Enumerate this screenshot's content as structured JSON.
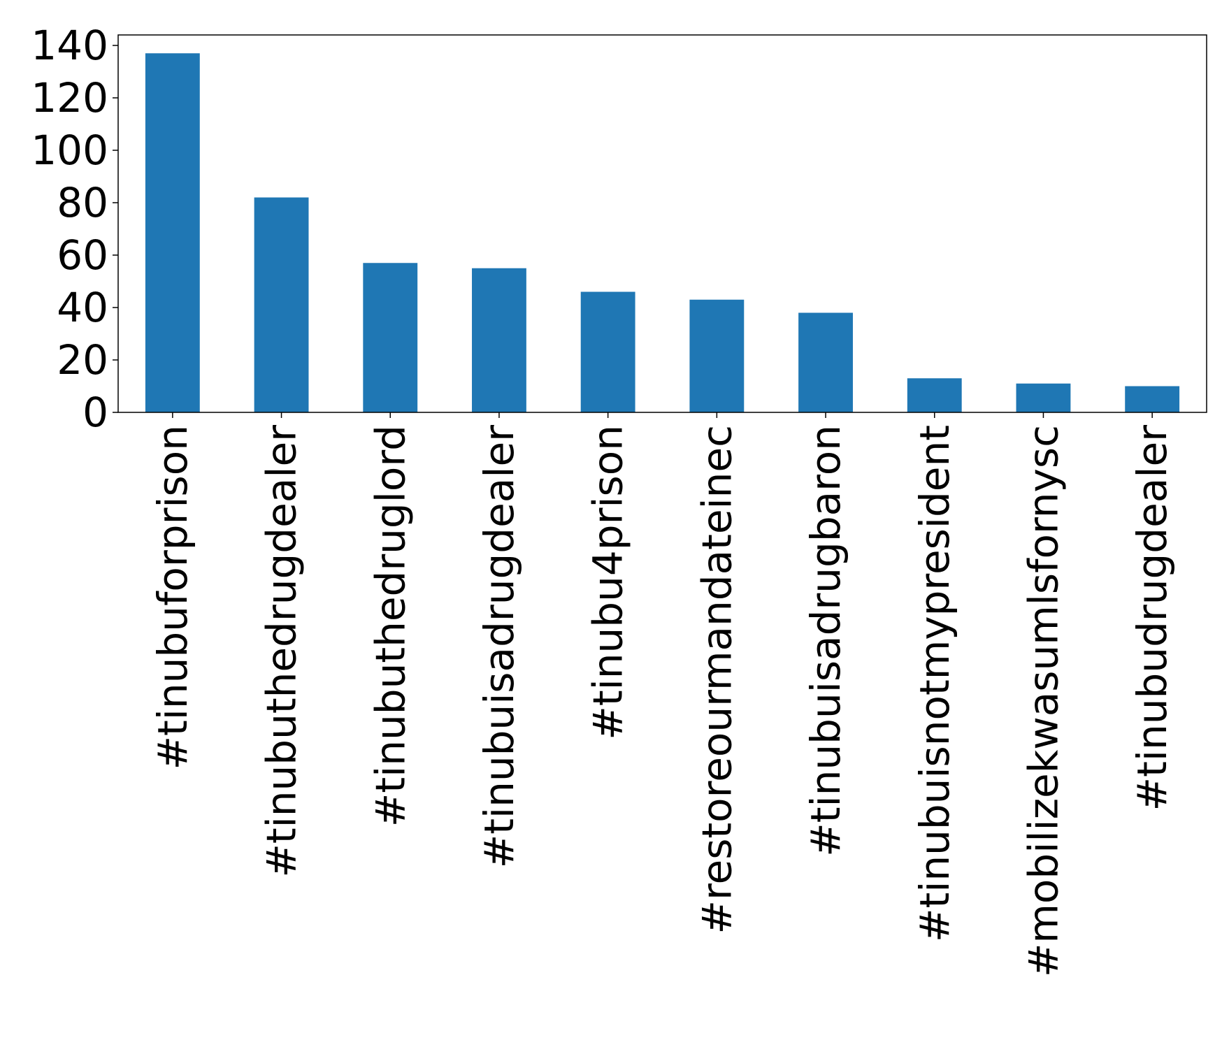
{
  "chart_data": {
    "type": "bar",
    "title": "",
    "xlabel": "",
    "ylabel": "",
    "categories": [
      "#tinubuforprison",
      "#tinubuthedrugdealer",
      "#tinubuthedruglord",
      "#tinubuisadrugdealer",
      "#tinubu4prison",
      "#restoreourmandateinec",
      "#tinubuisadrugbaron",
      "#tinubuisnotmypresident",
      "#mobilizekwasumlsfornysc",
      "#tinubudrugdealer"
    ],
    "values": [
      137,
      82,
      57,
      55,
      46,
      43,
      38,
      13,
      11,
      10
    ],
    "ylim": [
      0,
      144
    ],
    "yticks": [
      0,
      20,
      40,
      60,
      80,
      100,
      120,
      140
    ],
    "bar_color": "#1f77b4",
    "grid": false,
    "legend": "none"
  }
}
